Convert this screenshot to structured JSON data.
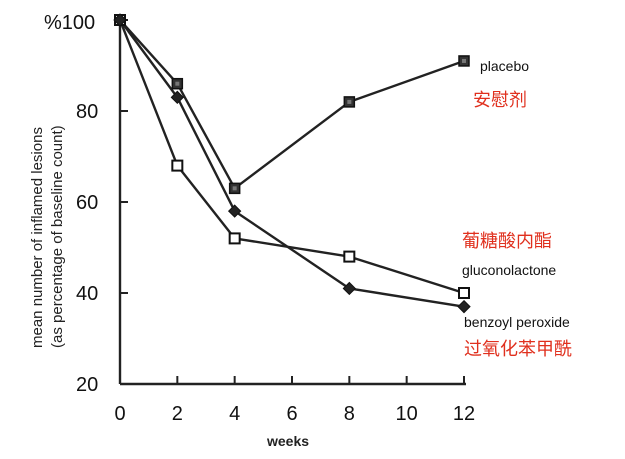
{
  "chart_data": {
    "type": "line",
    "title": "",
    "xlabel": "weeks",
    "ylabel_lines": [
      "mean number of inflamed lesions",
      "(as percentage of baseline count)"
    ],
    "y_top_label": "%100",
    "x_ticks": [
      "0",
      "2",
      "4",
      "6",
      "8",
      "10",
      "12"
    ],
    "y_ticks": [
      "20",
      "40",
      "60",
      "80"
    ],
    "xlim": [
      0,
      12
    ],
    "ylim": [
      20,
      100
    ],
    "grid": false,
    "series": [
      {
        "name": "placebo",
        "cn_label": "安慰剂",
        "marker": "filled-square",
        "x": [
          0,
          2,
          4,
          8,
          12
        ],
        "y": [
          100,
          86,
          63,
          82,
          91
        ]
      },
      {
        "name": "gluconolactone",
        "cn_label": "葡糖酸内酯",
        "marker": "open-square",
        "x": [
          0,
          2,
          4,
          8,
          12
        ],
        "y": [
          100,
          68,
          52,
          48,
          40
        ]
      },
      {
        "name": "benzoyl peroxide",
        "cn_label": "过氧化苯甲酰",
        "marker": "diamond",
        "x": [
          0,
          2,
          4,
          8,
          12
        ],
        "y": [
          100,
          83,
          58,
          41,
          37
        ]
      }
    ]
  }
}
